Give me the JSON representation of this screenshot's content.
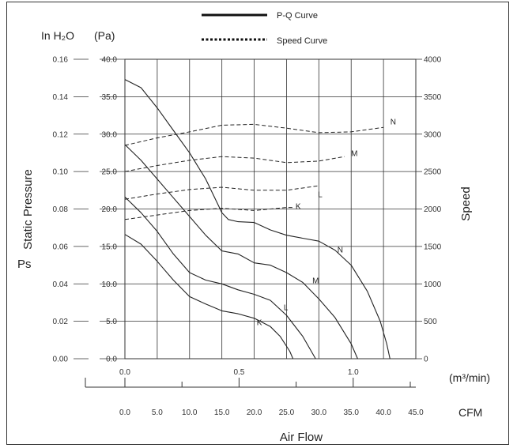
{
  "chart_data": {
    "type": "line",
    "legend": [
      {
        "name": "P-Q Curve",
        "style": "solid"
      },
      {
        "name": "Speed Curve",
        "style": "dashed"
      }
    ],
    "unit_inh2o": "In H₂O",
    "unit_pa": "(Pa)",
    "ylabel_left": "Static Pressure",
    "ylabel_left_sub": "Ps",
    "ylabel_right": "Speed",
    "xlabel": "Air Flow",
    "x_unit_m3": "(m³/min)",
    "x_unit_cfm": "CFM",
    "pa_ticks": [
      "0.0",
      "5.0",
      "10.0",
      "15.0",
      "20.0",
      "25.0",
      "30.0",
      "35.0",
      "40.0"
    ],
    "inh2o_ticks": [
      "0.00",
      "0.02",
      "0.04",
      "0.06",
      "0.08",
      "0.10",
      "0.12",
      "0.14",
      "0.16"
    ],
    "speed_ticks": [
      "0",
      "500",
      "1000",
      "1500",
      "2000",
      "2500",
      "3000",
      "3500",
      "4000"
    ],
    "cfm_ticks": [
      "0.0",
      "5.0",
      "10.0",
      "15.0",
      "20.0",
      "25.0",
      "30.0",
      "35.0",
      "40.0",
      "45.0"
    ],
    "m3_ticks": [
      {
        "value": 0.0,
        "label": "0.0"
      },
      {
        "value": 0.5,
        "label": "0.5"
      },
      {
        "value": 1.0,
        "label": "1.0"
      }
    ],
    "xlim_cfm": [
      0,
      45
    ],
    "ylim_pa": [
      0,
      40
    ],
    "ylim_speed": [
      0,
      4000
    ],
    "pq_series": [
      {
        "name": "N",
        "label_at": [
          33.3,
          14.6
        ],
        "points": [
          [
            0,
            37.3
          ],
          [
            2.5,
            36.2
          ],
          [
            5,
            33.5
          ],
          [
            7.5,
            30.5
          ],
          [
            10,
            27.5
          ],
          [
            12.5,
            24
          ],
          [
            15,
            19.5
          ],
          [
            16,
            18.6
          ],
          [
            17.5,
            18.3
          ],
          [
            20,
            18.2
          ],
          [
            22.5,
            17.2
          ],
          [
            25,
            16.5
          ],
          [
            27.5,
            16.1
          ],
          [
            30,
            15.7
          ],
          [
            32.5,
            14.5
          ],
          [
            35,
            12.5
          ],
          [
            37.5,
            9
          ],
          [
            39.5,
            5
          ],
          [
            40.5,
            2
          ],
          [
            41,
            0
          ]
        ]
      },
      {
        "name": "M",
        "label_at": [
          29.5,
          10.5
        ],
        "points": [
          [
            0,
            28.6
          ],
          [
            2.5,
            26.5
          ],
          [
            5,
            24
          ],
          [
            7.5,
            21.5
          ],
          [
            10,
            19
          ],
          [
            12.5,
            16.5
          ],
          [
            15,
            14.4
          ],
          [
            17.5,
            14
          ],
          [
            20,
            12.8
          ],
          [
            22.5,
            12.5
          ],
          [
            25,
            11.5
          ],
          [
            27.5,
            10.2
          ],
          [
            30,
            8
          ],
          [
            32.5,
            5.5
          ],
          [
            35,
            2
          ],
          [
            36,
            0
          ]
        ]
      },
      {
        "name": "L",
        "label_at": [
          24.9,
          6.9
        ],
        "points": [
          [
            0,
            21.6
          ],
          [
            2.5,
            19.5
          ],
          [
            5,
            17
          ],
          [
            7.5,
            14
          ],
          [
            10,
            11.5
          ],
          [
            12.5,
            10.5
          ],
          [
            15,
            10
          ],
          [
            17.5,
            9.2
          ],
          [
            20,
            8.6
          ],
          [
            22.5,
            7.8
          ],
          [
            25,
            5.8
          ],
          [
            27.5,
            3
          ],
          [
            29.5,
            0
          ]
        ]
      },
      {
        "name": "K",
        "label_at": [
          20.8,
          4.9
        ],
        "points": [
          [
            0,
            16.6
          ],
          [
            2.5,
            15.3
          ],
          [
            5,
            13
          ],
          [
            7.5,
            10.5
          ],
          [
            10,
            8.3
          ],
          [
            12.5,
            7.3
          ],
          [
            15,
            6.4
          ],
          [
            17.5,
            6
          ],
          [
            20,
            5.4
          ],
          [
            22.5,
            4.3
          ],
          [
            24,
            3
          ],
          [
            25.5,
            1
          ],
          [
            26,
            0
          ]
        ]
      }
    ],
    "speed_series": [
      {
        "name": "N",
        "label_at": [
          41.5,
          3170
        ],
        "points": [
          [
            0,
            2850
          ],
          [
            5,
            2950
          ],
          [
            10,
            3030
          ],
          [
            15,
            3120
          ],
          [
            20,
            3130
          ],
          [
            25,
            3080
          ],
          [
            30,
            3020
          ],
          [
            35,
            3030
          ],
          [
            40,
            3090
          ]
        ]
      },
      {
        "name": "M",
        "label_at": [
          35.5,
          2750
        ],
        "points": [
          [
            0,
            2500
          ],
          [
            5,
            2580
          ],
          [
            10,
            2650
          ],
          [
            15,
            2700
          ],
          [
            20,
            2680
          ],
          [
            25,
            2620
          ],
          [
            30,
            2640
          ],
          [
            34,
            2700
          ]
        ]
      },
      {
        "name": "L",
        "label_at": [
          30.2,
          2200
        ],
        "points": [
          [
            0,
            2130
          ],
          [
            5,
            2200
          ],
          [
            10,
            2260
          ],
          [
            15,
            2290
          ],
          [
            20,
            2250
          ],
          [
            25,
            2250
          ],
          [
            30,
            2310
          ]
        ]
      },
      {
        "name": "K",
        "label_at": [
          26.8,
          2040
        ],
        "points": [
          [
            0,
            1860
          ],
          [
            5,
            1920
          ],
          [
            10,
            1980
          ],
          [
            15,
            2010
          ],
          [
            20,
            1980
          ],
          [
            25,
            2020
          ],
          [
            26,
            2020
          ]
        ]
      }
    ]
  }
}
